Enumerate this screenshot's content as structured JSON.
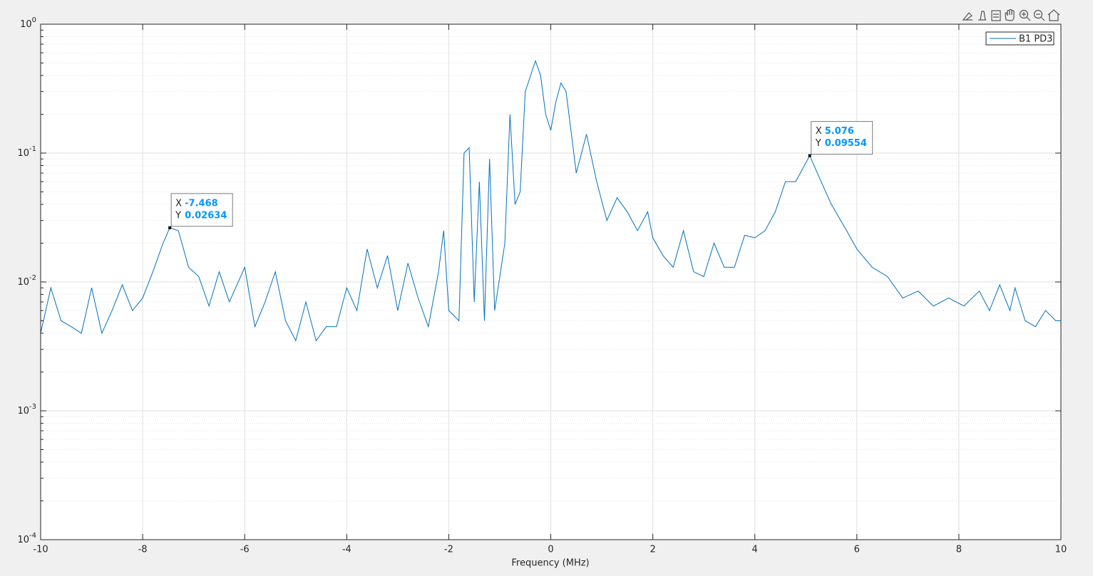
{
  "chart_data": {
    "type": "line",
    "xlabel": "Frequency (MHz)",
    "xlim": [
      -10,
      10
    ],
    "xticks": [
      -10,
      -8,
      -6,
      -4,
      -2,
      0,
      2,
      4,
      6,
      8,
      10
    ],
    "ylim": [
      0.0001,
      1
    ],
    "yscale": "log",
    "yticks": [
      {
        "value": 0.0001,
        "label": "10^-4"
      },
      {
        "value": 0.001,
        "label": "10^-3"
      },
      {
        "value": 0.01,
        "label": "10^-2"
      },
      {
        "value": 0.1,
        "label": "10^-1"
      },
      {
        "value": 1,
        "label": "10^0"
      }
    ],
    "grid": true,
    "minor_grid": true,
    "legend": "northeast",
    "series": [
      {
        "name": "B1 PD3",
        "color": "#0072bd",
        "x": [
          -10,
          -9.8,
          -9.6,
          -9.4,
          -9.2,
          -9.0,
          -8.8,
          -8.6,
          -8.4,
          -8.2,
          -8.0,
          -7.8,
          -7.6,
          -7.468,
          -7.3,
          -7.1,
          -6.9,
          -6.7,
          -6.5,
          -6.3,
          -6.0,
          -5.8,
          -5.6,
          -5.4,
          -5.2,
          -5.0,
          -4.8,
          -4.6,
          -4.4,
          -4.2,
          -4.0,
          -3.8,
          -3.6,
          -3.4,
          -3.2,
          -3.0,
          -2.8,
          -2.6,
          -2.4,
          -2.2,
          -2.1,
          -2.0,
          -1.8,
          -1.7,
          -1.6,
          -1.5,
          -1.4,
          -1.3,
          -1.2,
          -1.1,
          -0.9,
          -0.8,
          -0.7,
          -0.6,
          -0.5,
          -0.3,
          -0.2,
          -0.1,
          0.0,
          0.1,
          0.2,
          0.3,
          0.5,
          0.7,
          0.9,
          1.1,
          1.3,
          1.5,
          1.7,
          1.9,
          2.0,
          2.2,
          2.4,
          2.6,
          2.8,
          3.0,
          3.2,
          3.4,
          3.6,
          3.8,
          4.0,
          4.2,
          4.4,
          4.6,
          4.8,
          5.076,
          5.3,
          5.5,
          5.8,
          6.0,
          6.3,
          6.6,
          6.9,
          7.2,
          7.5,
          7.8,
          8.1,
          8.4,
          8.6,
          8.8,
          9.0,
          9.1,
          9.3,
          9.5,
          9.7,
          9.9,
          10
        ],
        "values": [
          0.004,
          0.009,
          0.005,
          0.0045,
          0.004,
          0.009,
          0.004,
          0.006,
          0.0095,
          0.006,
          0.0075,
          0.012,
          0.02,
          0.02634,
          0.025,
          0.013,
          0.011,
          0.0065,
          0.012,
          0.007,
          0.013,
          0.0045,
          0.007,
          0.012,
          0.005,
          0.0035,
          0.007,
          0.0035,
          0.0045,
          0.0045,
          0.009,
          0.006,
          0.018,
          0.009,
          0.016,
          0.006,
          0.014,
          0.0075,
          0.0045,
          0.012,
          0.025,
          0.006,
          0.005,
          0.1,
          0.11,
          0.007,
          0.06,
          0.005,
          0.09,
          0.006,
          0.02,
          0.2,
          0.04,
          0.05,
          0.3,
          0.52,
          0.4,
          0.2,
          0.15,
          0.25,
          0.35,
          0.3,
          0.07,
          0.14,
          0.06,
          0.03,
          0.045,
          0.035,
          0.025,
          0.035,
          0.022,
          0.016,
          0.013,
          0.025,
          0.012,
          0.011,
          0.02,
          0.013,
          0.013,
          0.023,
          0.022,
          0.025,
          0.035,
          0.06,
          0.06,
          0.09554,
          0.06,
          0.04,
          0.025,
          0.018,
          0.013,
          0.011,
          0.0075,
          0.0085,
          0.0065,
          0.0075,
          0.0065,
          0.0085,
          0.006,
          0.0095,
          0.006,
          0.009,
          0.005,
          0.0045,
          0.006,
          0.005,
          0.005
        ]
      }
    ],
    "datatip_fields": [
      "X",
      "Y"
    ],
    "datatips": [
      {
        "x": -7.468,
        "y": 0.02634
      },
      {
        "x": 5.076,
        "y": 0.09554
      }
    ]
  }
}
